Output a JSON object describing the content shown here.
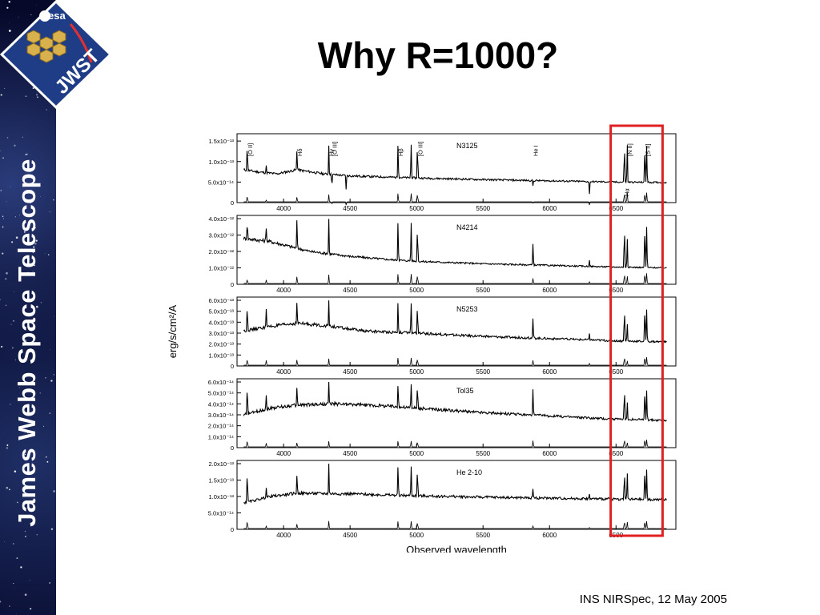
{
  "sidebar": {
    "title": "James Webb Space Telescope"
  },
  "logo": {
    "agency": "esa",
    "name": "JWST"
  },
  "slide": {
    "title": "Why R=1000?",
    "footer": "INS NIRSpec, 12 May 2005"
  },
  "chart_data": {
    "type": "line",
    "xlabel": "Observed wavelength",
    "ylabel": "erg/s/cm²/A",
    "xlim": [
      3650,
      6950
    ],
    "x_ticks": [
      4000,
      4500,
      5000,
      5500,
      6000,
      6500
    ],
    "x_tick_labels": [
      "4000",
      "4500",
      "5000",
      "5500",
      "6000",
      "6500"
    ],
    "highlight_range": [
      6460,
      6850
    ],
    "highlight_color": "#e02020",
    "panels": [
      {
        "name": "N3125",
        "ylim": [
          0,
          1.6e-13
        ],
        "y_ticks": [
          0,
          5e-14,
          1e-13,
          1.5e-13
        ],
        "y_tick_labels": [
          "0",
          "5.0x10⁻¹⁴",
          "1.0x10⁻¹³",
          "1.5x10⁻¹³"
        ],
        "continuum": [
          [
            3700,
            8e-14
          ],
          [
            3800,
            7.5e-14
          ],
          [
            3950,
            7e-14
          ],
          [
            4100,
            8e-14
          ],
          [
            4300,
            7e-14
          ],
          [
            4500,
            6.5e-14
          ],
          [
            4800,
            6.2e-14
          ],
          [
            5000,
            6e-14
          ],
          [
            5500,
            5.6e-14
          ],
          [
            6000,
            5.3e-14
          ],
          [
            6500,
            5e-14
          ],
          [
            6900,
            4.9e-14
          ]
        ],
        "lines": [
          [
            3727,
            1.5e-13
          ],
          [
            3869,
            9e-14
          ],
          [
            4101,
            1.3e-13
          ],
          [
            4340,
            1.4e-13
          ],
          [
            4363,
            4e-14
          ],
          [
            4471,
            3e-14
          ],
          [
            4861,
            1.5e-13
          ],
          [
            4959,
            1.5e-13
          ],
          [
            5007,
            1.6e-13
          ],
          [
            5876,
            4e-14
          ],
          [
            6300,
            2e-14
          ],
          [
            6563,
            1.6e-13
          ],
          [
            6584,
            1.5e-13
          ],
          [
            6717,
            1.5e-13
          ],
          [
            6731,
            1.5e-13
          ]
        ],
        "annotations": [
          "[O II]",
          "Hδ",
          "Hγ",
          "[O III]",
          "Hβ",
          "[O III]",
          "He I",
          "Hα",
          "[N II]",
          "[S II]"
        ]
      },
      {
        "name": "N4214",
        "ylim": [
          0,
          4e-12
        ],
        "y_ticks": [
          0,
          1e-12,
          2e-12,
          3e-12,
          4e-12
        ],
        "y_tick_labels": [
          "0",
          "1.0x10⁻¹²",
          "2.0x10⁻¹²",
          "3.0x10⁻¹²",
          "4.0x10⁻¹²"
        ],
        "continuum": [
          [
            3700,
            2.8e-12
          ],
          [
            3900,
            2.6e-12
          ],
          [
            4200,
            2e-12
          ],
          [
            4500,
            1.7e-12
          ],
          [
            4800,
            1.5e-12
          ],
          [
            5000,
            1.4e-12
          ],
          [
            5500,
            1.25e-12
          ],
          [
            6000,
            1.15e-12
          ],
          [
            6500,
            1.05e-12
          ],
          [
            6900,
            1e-12
          ]
        ],
        "lines": [
          [
            3727,
            4e-12
          ],
          [
            3869,
            3.6e-12
          ],
          [
            4101,
            4e-12
          ],
          [
            4340,
            4e-12
          ],
          [
            4861,
            4e-12
          ],
          [
            4959,
            4e-12
          ],
          [
            5007,
            4e-12
          ],
          [
            5876,
            2.6e-12
          ],
          [
            6300,
            1.5e-12
          ],
          [
            6563,
            4e-12
          ],
          [
            6584,
            3e-12
          ],
          [
            6717,
            4e-12
          ],
          [
            6731,
            3.8e-12
          ]
        ]
      },
      {
        "name": "N5253",
        "ylim": [
          0,
          6e-13
        ],
        "y_ticks": [
          0,
          1e-13,
          2e-13,
          3e-13,
          4e-13,
          5e-13,
          6e-13
        ],
        "y_tick_labels": [
          "0",
          "1.0x10⁻¹³",
          "2.0x10⁻¹³",
          "3.0x10⁻¹³",
          "4.0x10⁻¹³",
          "5.0x10⁻¹³",
          "6.0x10⁻¹³"
        ],
        "continuum": [
          [
            3700,
            3.2e-13
          ],
          [
            3900,
            3.6e-13
          ],
          [
            4100,
            3.9e-13
          ],
          [
            4300,
            3.7e-13
          ],
          [
            4600,
            3.2e-13
          ],
          [
            5000,
            3e-13
          ],
          [
            5500,
            2.7e-13
          ],
          [
            6000,
            2.5e-13
          ],
          [
            6500,
            2.3e-13
          ],
          [
            6900,
            2.2e-13
          ]
        ],
        "lines": [
          [
            3727,
            6e-13
          ],
          [
            3869,
            5.5e-13
          ],
          [
            4101,
            6e-13
          ],
          [
            4340,
            6e-13
          ],
          [
            4861,
            6e-13
          ],
          [
            4959,
            6e-13
          ],
          [
            5007,
            6e-13
          ],
          [
            5876,
            4.5e-13
          ],
          [
            6300,
            3e-13
          ],
          [
            6563,
            6e-13
          ],
          [
            6584,
            4e-13
          ],
          [
            6717,
            6e-13
          ],
          [
            6731,
            5.5e-13
          ]
        ]
      },
      {
        "name": "Tol35",
        "ylim": [
          0,
          6e-14
        ],
        "y_ticks": [
          0,
          1e-14,
          2e-14,
          3e-14,
          4e-14,
          5e-14,
          6e-14
        ],
        "y_tick_labels": [
          "0",
          "1.0x10⁻¹⁴",
          "2.0x10⁻¹⁴",
          "3.0x10⁻¹⁴",
          "4.0x10⁻¹⁴",
          "5.0x10⁻¹⁴",
          "6.0x10⁻¹⁴"
        ],
        "continuum": [
          [
            3700,
            3e-14
          ],
          [
            3900,
            3.6e-14
          ],
          [
            4100,
            3.9e-14
          ],
          [
            4400,
            4e-14
          ],
          [
            4800,
            3.8e-14
          ],
          [
            5000,
            3.6e-14
          ],
          [
            5500,
            3.2e-14
          ],
          [
            6000,
            2.9e-14
          ],
          [
            6500,
            2.6e-14
          ],
          [
            6900,
            2.5e-14
          ]
        ],
        "lines": [
          [
            3727,
            6e-14
          ],
          [
            3869,
            5e-14
          ],
          [
            4101,
            5.5e-14
          ],
          [
            4340,
            6e-14
          ],
          [
            4861,
            6e-14
          ],
          [
            4959,
            6e-14
          ],
          [
            5007,
            6e-14
          ],
          [
            5876,
            5.5e-14
          ],
          [
            6563,
            6e-14
          ],
          [
            6584,
            4.2e-14
          ],
          [
            6717,
            6e-14
          ],
          [
            6731,
            5.5e-14
          ]
        ]
      },
      {
        "name": "He 2-10",
        "ylim": [
          0,
          2e-13
        ],
        "y_ticks": [
          0,
          5e-14,
          1e-13,
          1.5e-13,
          2e-13
        ],
        "y_tick_labels": [
          "0",
          "5.0x10⁻¹⁴",
          "1.0x10⁻¹³",
          "1.5x10⁻¹³",
          "2.0x10⁻¹³"
        ],
        "continuum": [
          [
            3700,
            8e-14
          ],
          [
            3900,
            1e-13
          ],
          [
            4100,
            1.1e-13
          ],
          [
            4500,
            1.08e-13
          ],
          [
            5000,
            1.02e-13
          ],
          [
            5500,
            9.8e-14
          ],
          [
            6000,
            9.5e-14
          ],
          [
            6500,
            9.2e-14
          ],
          [
            6900,
            9e-14
          ]
        ],
        "lines": [
          [
            3727,
            2e-13
          ],
          [
            3869,
            1.3e-13
          ],
          [
            4101,
            1.7e-13
          ],
          [
            4340,
            2e-13
          ],
          [
            4861,
            2e-13
          ],
          [
            4959,
            2e-13
          ],
          [
            5007,
            2e-13
          ],
          [
            5876,
            1.3e-13
          ],
          [
            6300,
            1.05e-13
          ],
          [
            6563,
            2e-13
          ],
          [
            6584,
            1.8e-13
          ],
          [
            6717,
            2e-13
          ],
          [
            6731,
            1.9e-13
          ]
        ]
      }
    ]
  }
}
